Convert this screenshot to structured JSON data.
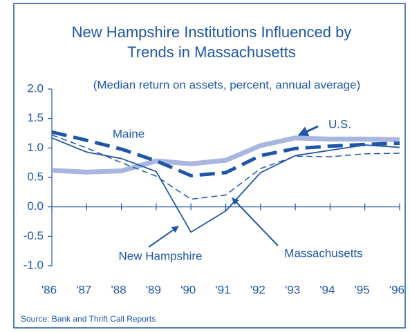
{
  "chart_data": {
    "type": "line",
    "title": [
      "New Hampshire Institutions Influenced by",
      "Trends in Massachusetts"
    ],
    "subtitle": "(Median return on assets, percent, annual average)",
    "source": "Source: Bank and Thrift Call Reports",
    "categories": [
      "'86",
      "'87",
      "'88",
      "'89",
      "'90",
      "'91",
      "'92",
      "'93",
      "'94",
      "'95",
      "'96"
    ],
    "ylim": [
      -1.0,
      2.0
    ],
    "yticks": [
      {
        "value": -1.0,
        "label": "-1.0"
      },
      {
        "value": -0.5,
        "label": "-0.5"
      },
      {
        "value": 0.0,
        "label": "0.0"
      },
      {
        "value": 0.5,
        "label": "0.5"
      },
      {
        "value": 1.0,
        "label": "1.0"
      },
      {
        "value": 1.5,
        "label": "1.5"
      },
      {
        "value": 2.0,
        "label": "2.0"
      }
    ],
    "series": [
      {
        "name": "U.S.",
        "color": "#a8b6e0",
        "values": [
          0.62,
          0.59,
          0.61,
          0.78,
          0.73,
          0.79,
          1.04,
          1.17,
          1.15,
          1.15,
          1.14
        ]
      },
      {
        "name": "Maine",
        "color": "#1f56a8",
        "values": [
          1.27,
          1.13,
          0.98,
          0.78,
          0.53,
          0.58,
          0.87,
          0.99,
          1.03,
          1.06,
          1.08
        ]
      },
      {
        "name": "New Hampshire",
        "color": "#1f56a8",
        "values": [
          1.17,
          0.93,
          0.82,
          0.6,
          -0.43,
          -0.07,
          0.58,
          0.87,
          0.96,
          1.05,
          1.01
        ]
      },
      {
        "name": "Massachusetts",
        "color": "#1f56a8",
        "values": [
          1.22,
          1.0,
          0.75,
          0.52,
          0.13,
          0.2,
          0.65,
          0.86,
          0.85,
          0.9,
          0.91
        ]
      }
    ]
  }
}
